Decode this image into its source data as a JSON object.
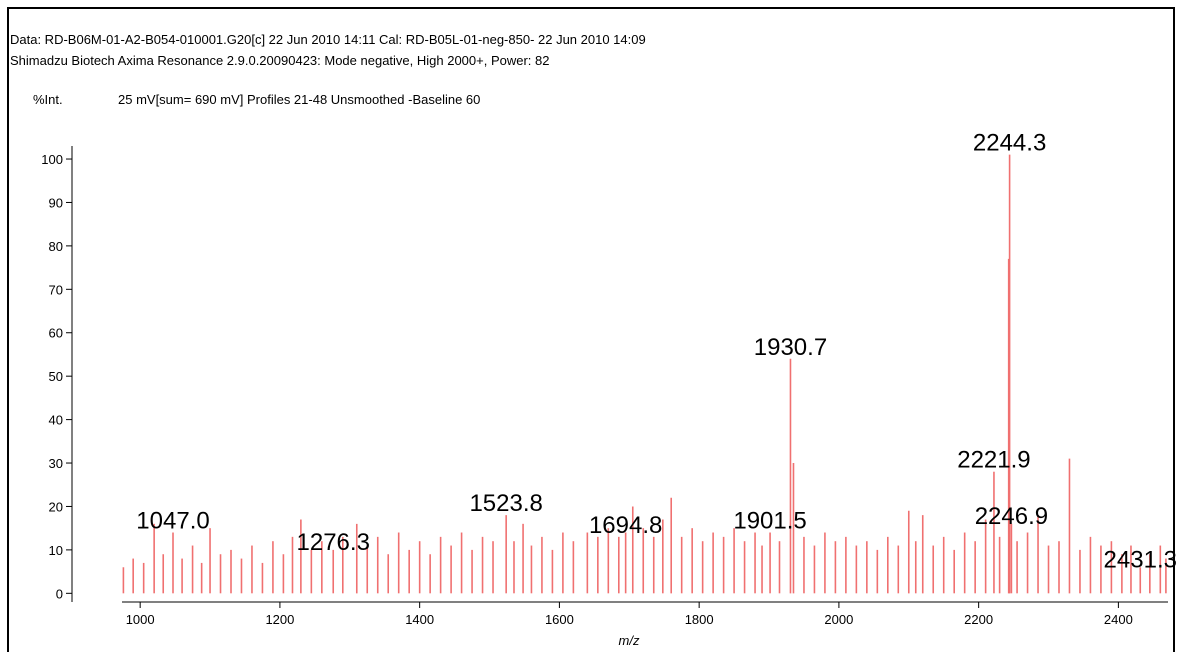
{
  "chart_data": {
    "type": "stem",
    "header": [
      "Data: RD-B06M-01-A2-B054-010001.G20[c] 22 Jun 2010 14:11 Cal: RD-B05L-01-neg-850- 22 Jun 2010 14:09",
      "Shimadzu Biotech Axima Resonance 2.9.0.20090423: Mode negative, High 2000+, Power: 82"
    ],
    "ylabel": "%Int.",
    "subtitle": "25 mV[sum= 690 mV]  Profiles 21-48 Unsmoothed -Baseline 60",
    "xlabel": "m/z",
    "color": "#f07070",
    "x": [
      976,
      990,
      1005,
      1020,
      1033,
      1047,
      1060,
      1075,
      1088,
      1100,
      1115,
      1130,
      1145,
      1160,
      1175,
      1190,
      1205,
      1218,
      1230,
      1245,
      1260,
      1276.3,
      1290,
      1310,
      1325,
      1340,
      1355,
      1370,
      1385,
      1400,
      1415,
      1430,
      1445,
      1460,
      1475,
      1490,
      1505,
      1523.8,
      1535,
      1548,
      1560,
      1575,
      1590,
      1605,
      1620,
      1640,
      1655,
      1670,
      1685,
      1694.8,
      1705,
      1720,
      1735,
      1748,
      1760,
      1775,
      1790,
      1805,
      1820,
      1835,
      1850,
      1865,
      1880,
      1890,
      1901.5,
      1915,
      1930.7,
      1935,
      1950,
      1965,
      1980,
      1995,
      2010,
      2025,
      2040,
      2055,
      2070,
      2085,
      2100,
      2110,
      2120,
      2135,
      2150,
      2165,
      2180,
      2195,
      2210,
      2221.9,
      2230,
      2243,
      2244.3,
      2246.9,
      2255,
      2270,
      2285,
      2300,
      2315,
      2330,
      2345,
      2360,
      2375,
      2390,
      2405,
      2418,
      2431.3,
      2445,
      2460,
      2468
    ],
    "values": [
      6,
      8,
      7,
      16,
      9,
      14,
      8,
      11,
      7,
      15,
      9,
      10,
      8,
      11,
      7,
      12,
      9,
      13,
      17,
      10,
      12,
      10,
      13,
      16,
      11,
      13,
      9,
      14,
      10,
      12,
      9,
      13,
      11,
      14,
      10,
      13,
      12,
      18,
      12,
      16,
      11,
      13,
      10,
      14,
      12,
      14,
      13,
      15,
      13,
      14,
      20,
      15,
      13,
      17,
      22,
      13,
      15,
      12,
      14,
      13,
      15,
      12,
      14,
      11,
      14,
      12,
      54,
      30,
      13,
      11,
      14,
      12,
      13,
      11,
      12,
      10,
      13,
      11,
      19,
      12,
      18,
      11,
      13,
      10,
      14,
      12,
      17,
      28,
      13,
      77,
      101,
      16,
      12,
      14,
      18,
      11,
      12,
      31,
      10,
      13,
      11,
      12,
      9,
      11,
      6,
      9,
      11,
      8
    ],
    "annotations": [
      {
        "text": "1047.0",
        "x": 1047,
        "y": 14
      },
      {
        "text": "1276.3",
        "x": 1276.3,
        "y": 9
      },
      {
        "text": "1523.8",
        "x": 1523.8,
        "y": 18
      },
      {
        "text": "1694.8",
        "x": 1694.8,
        "y": 13
      },
      {
        "text": "1901.5",
        "x": 1901.5,
        "y": 14
      },
      {
        "text": "1930.7",
        "x": 1930.7,
        "y": 54
      },
      {
        "text": "2221.9",
        "x": 2221.9,
        "y": 28
      },
      {
        "text": "2244.3",
        "x": 2244.3,
        "y": 101
      },
      {
        "text": "2246.9",
        "x": 2246.9,
        "y": 15
      },
      {
        "text": "2431.3",
        "x": 2431.3,
        "y": 5
      }
    ],
    "xlim": [
      974,
      2471
    ],
    "xticks": [
      1000,
      1200,
      1400,
      1600,
      1800,
      2000,
      2200,
      2400
    ],
    "ylim": [
      -2,
      103
    ],
    "yticks": [
      0,
      10,
      20,
      30,
      40,
      50,
      60,
      70,
      80,
      90,
      100
    ]
  }
}
